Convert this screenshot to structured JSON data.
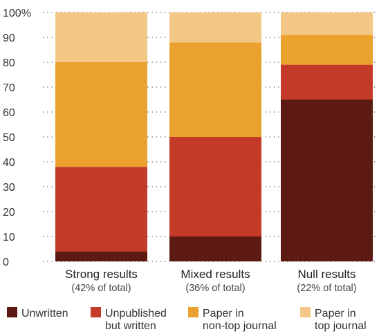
{
  "chart_data": {
    "type": "bar",
    "stacked": true,
    "categories": [
      "Strong results",
      "Mixed results",
      "Null results"
    ],
    "category_notes": [
      "(42% of total)",
      "(36% of total)",
      "(22% of total)"
    ],
    "series": [
      {
        "name": "Unwritten",
        "legend_lines": [
          "Unwritten"
        ],
        "color": "#5c1a12",
        "values": [
          4,
          10,
          65
        ]
      },
      {
        "name": "Unpublished but written",
        "legend_lines": [
          "Unpublished",
          "but written"
        ],
        "color": "#c33a28",
        "values": [
          34,
          40,
          14
        ]
      },
      {
        "name": "Paper in non-top journal",
        "legend_lines": [
          "Paper in",
          "non-top journal"
        ],
        "color": "#eba12d",
        "values": [
          42,
          38,
          12
        ]
      },
      {
        "name": "Paper in top journal",
        "legend_lines": [
          "Paper in",
          "top journal"
        ],
        "color": "#f3c786",
        "values": [
          20,
          12,
          9
        ]
      }
    ],
    "yticks": [
      "0",
      "10",
      "20",
      "30",
      "40",
      "50",
      "60",
      "70",
      "80",
      "90",
      "100%"
    ],
    "ylim": [
      0,
      100
    ],
    "grid": "dotted",
    "legend_position": "bottom"
  }
}
